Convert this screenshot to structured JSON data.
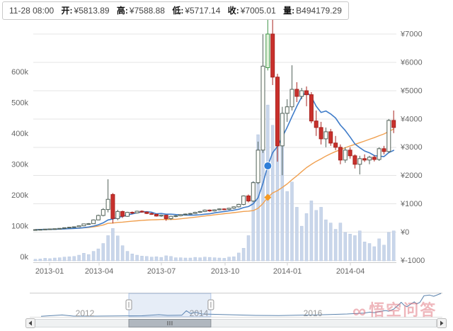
{
  "header": {
    "datetime": "11-28 08:00",
    "fields": [
      {
        "label": "开:",
        "value": "¥5813.89"
      },
      {
        "label": "高:",
        "value": "¥7588.88"
      },
      {
        "label": "低:",
        "value": "¥5717.14"
      },
      {
        "label": "收:",
        "value": "¥7005.01"
      },
      {
        "label": "量:",
        "value": "B494179.29"
      }
    ]
  },
  "colors": {
    "up_fill": "#fffefa",
    "up_stroke": "#52625a",
    "down_fill": "#c9302c",
    "down_stroke": "#a8241f",
    "hover_fill": "#e4f3dc",
    "hover_stroke": "#3f9448",
    "ma10": "#3f7cc9",
    "ma30": "#f0a050",
    "volume_fill": "#c9d6ea",
    "volume_stroke": "#b7c7e0",
    "grid": "#e4e4e4",
    "axis_line": "#cccccc",
    "axis_text": "#666666",
    "marker_blue": "#2f7ed8",
    "marker_orange": "#f59a23",
    "navigator_line": "#5b83ad",
    "mask_fill": "rgba(102,144,205,0.16)",
    "mask_stroke": "rgba(102,144,205,0.45)",
    "scroll_track": "#eff1f2",
    "scroll_thumb": "#b0b7bf"
  },
  "chart_data": {
    "type": "candlestick",
    "interval": "weekly",
    "title": "",
    "price_axis": {
      "unit": "¥",
      "labels": [
        "¥7000",
        "¥6000",
        "¥5000",
        "¥4000",
        "¥3000",
        "¥2000",
        "¥1000",
        "¥0",
        "¥-1000"
      ],
      "values": [
        7000,
        6000,
        5000,
        4000,
        3000,
        2000,
        1000,
        0,
        -1000
      ]
    },
    "volume_axis": {
      "unit": "k",
      "labels": [
        "600k",
        "500k",
        "400k",
        "300k",
        "200k",
        "100k",
        "0k"
      ],
      "values": [
        600,
        500,
        400,
        300,
        200,
        100,
        0
      ]
    },
    "time_axis": {
      "labels": [
        "2013-01",
        "2013-04",
        "2013-07",
        "2013-10",
        "2014-01",
        "2014-04"
      ]
    },
    "ma_periods": [
      10,
      30
    ],
    "hovered_index": 48,
    "hovered_values": {
      "open": 5813.89,
      "high": 7588.88,
      "low": 5717.14,
      "close": 7005.01,
      "volume_btc": 494179.29
    },
    "candles": [
      [
        "2012-12-27",
        85,
        92,
        80,
        88,
        5
      ],
      [
        "2013-01-03",
        88,
        98,
        84,
        95,
        6
      ],
      [
        "2013-01-10",
        95,
        110,
        90,
        105,
        8
      ],
      [
        "2013-01-17",
        105,
        118,
        100,
        112,
        7
      ],
      [
        "2013-01-24",
        112,
        125,
        108,
        120,
        9
      ],
      [
        "2013-01-31",
        120,
        138,
        115,
        132,
        10
      ],
      [
        "2013-02-07",
        132,
        160,
        128,
        155,
        12
      ],
      [
        "2013-02-14",
        155,
        180,
        148,
        172,
        13
      ],
      [
        "2013-02-21",
        172,
        195,
        165,
        188,
        14
      ],
      [
        "2013-02-28",
        188,
        230,
        180,
        222,
        18
      ],
      [
        "2013-03-07",
        222,
        300,
        210,
        290,
        24
      ],
      [
        "2013-03-14",
        290,
        320,
        260,
        298,
        20
      ],
      [
        "2013-03-21",
        298,
        450,
        290,
        432,
        30
      ],
      [
        "2013-03-28",
        432,
        620,
        420,
        590,
        38
      ],
      [
        "2013-04-04",
        590,
        850,
        560,
        800,
        55
      ],
      [
        "2013-04-11",
        800,
        1870,
        700,
        1160,
        80
      ],
      [
        "2013-04-18",
        1330,
        1380,
        310,
        480,
        103
      ],
      [
        "2013-04-25",
        480,
        790,
        420,
        730,
        79
      ],
      [
        "2013-05-02",
        730,
        760,
        500,
        560,
        48
      ],
      [
        "2013-05-09",
        560,
        720,
        540,
        700,
        30
      ],
      [
        "2013-05-16",
        700,
        730,
        640,
        680,
        22
      ],
      [
        "2013-05-23",
        680,
        760,
        660,
        740,
        18
      ],
      [
        "2013-05-30",
        740,
        770,
        690,
        710,
        15
      ],
      [
        "2013-06-06",
        710,
        730,
        640,
        660,
        14
      ],
      [
        "2013-06-13",
        660,
        690,
        610,
        630,
        12
      ],
      [
        "2013-06-20",
        630,
        650,
        550,
        570,
        13
      ],
      [
        "2013-06-27",
        570,
        620,
        540,
        600,
        11
      ],
      [
        "2013-07-04",
        600,
        610,
        400,
        480,
        16
      ],
      [
        "2013-07-11",
        480,
        580,
        430,
        560,
        14
      ],
      [
        "2013-07-18",
        560,
        600,
        530,
        580,
        10
      ],
      [
        "2013-07-25",
        580,
        640,
        560,
        620,
        10
      ],
      [
        "2013-08-01",
        620,
        660,
        600,
        640,
        9
      ],
      [
        "2013-08-08",
        640,
        680,
        620,
        660,
        9
      ],
      [
        "2013-08-15",
        660,
        720,
        640,
        700,
        11
      ],
      [
        "2013-08-22",
        700,
        750,
        680,
        730,
        10
      ],
      [
        "2013-08-29",
        730,
        800,
        710,
        780,
        12
      ],
      [
        "2013-09-05",
        780,
        800,
        720,
        750,
        11
      ],
      [
        "2013-09-12",
        750,
        810,
        730,
        790,
        10
      ],
      [
        "2013-09-19",
        790,
        840,
        770,
        820,
        9
      ],
      [
        "2013-09-26",
        820,
        840,
        780,
        805,
        8
      ],
      [
        "2013-10-03",
        805,
        860,
        780,
        845,
        12
      ],
      [
        "2013-10-10",
        845,
        910,
        820,
        895,
        13
      ],
      [
        "2013-10-17",
        895,
        1000,
        870,
        980,
        25
      ],
      [
        "2013-10-24",
        980,
        1300,
        950,
        1280,
        40
      ],
      [
        "2013-10-31",
        1280,
        1330,
        1050,
        1100,
        80
      ],
      [
        "2013-11-07",
        1100,
        1800,
        1060,
        1750,
        250
      ],
      [
        "2013-11-14",
        1750,
        3200,
        1700,
        2900,
        400
      ],
      [
        "2013-11-21",
        2900,
        7000,
        2800,
        5870,
        430
      ],
      [
        "2013-11-28",
        5813.89,
        7588.88,
        5717.14,
        7005.01,
        494.18
      ],
      [
        "2013-12-05",
        7005,
        7590,
        5200,
        5480,
        430
      ],
      [
        "2013-12-12",
        5480,
        5600,
        2490,
        3050,
        460
      ],
      [
        "2013-12-19",
        3050,
        4430,
        2010,
        4200,
        390
      ],
      [
        "2013-12-26",
        4200,
        4700,
        3900,
        4430,
        220
      ],
      [
        "2014-01-02",
        4430,
        5900,
        4300,
        5050,
        250
      ],
      [
        "2014-01-09",
        5050,
        5300,
        4600,
        4800,
        170
      ],
      [
        "2014-01-16",
        4800,
        5100,
        4700,
        5000,
        110
      ],
      [
        "2014-01-23",
        5000,
        5150,
        4450,
        4860,
        150
      ],
      [
        "2014-01-30",
        4860,
        4950,
        3850,
        3930,
        190
      ],
      [
        "2014-02-06",
        3930,
        4300,
        3400,
        3700,
        160
      ],
      [
        "2014-02-13",
        3700,
        3900,
        3100,
        3300,
        170
      ],
      [
        "2014-02-20",
        3300,
        3700,
        3000,
        3550,
        130
      ],
      [
        "2014-02-27",
        3550,
        3650,
        3050,
        3150,
        120
      ],
      [
        "2014-03-06",
        3150,
        3400,
        2900,
        3000,
        100
      ],
      [
        "2014-03-13",
        3000,
        3100,
        2400,
        2550,
        120
      ],
      [
        "2014-03-20",
        2550,
        3000,
        2450,
        2900,
        90
      ],
      [
        "2014-03-27",
        2900,
        3000,
        2600,
        2700,
        85
      ],
      [
        "2014-04-03",
        2700,
        2750,
        2250,
        2400,
        80
      ],
      [
        "2014-04-10",
        2400,
        2700,
        2040,
        2600,
        95
      ],
      [
        "2014-04-17",
        2600,
        2750,
        2480,
        2550,
        60
      ],
      [
        "2014-04-24",
        2550,
        2700,
        2400,
        2650,
        55
      ],
      [
        "2014-05-01",
        2650,
        2720,
        2500,
        2570,
        45
      ],
      [
        "2014-05-08",
        2570,
        3000,
        2520,
        2950,
        70
      ],
      [
        "2014-05-15",
        2950,
        3050,
        2750,
        2850,
        50
      ],
      [
        "2014-05-22",
        2850,
        4000,
        2800,
        3950,
        90
      ],
      [
        "2014-05-29",
        3950,
        4300,
        3500,
        3700,
        95
      ]
    ]
  },
  "navigator": {
    "year_labels": [
      "2012",
      "2014",
      "2016"
    ],
    "year_values": [
      2012,
      2014,
      2016
    ],
    "window": [
      2012.77,
      2014.21
    ],
    "series": [
      [
        2011.23,
        0.02
      ],
      [
        2011.6,
        0.08
      ],
      [
        2011.8,
        0.03
      ],
      [
        2012.2,
        0.03
      ],
      [
        2012.6,
        0.04
      ],
      [
        2013.0,
        0.045
      ],
      [
        2013.3,
        0.09
      ],
      [
        2013.45,
        0.06
      ],
      [
        2013.7,
        0.07
      ],
      [
        2013.78,
        0.26
      ],
      [
        2013.85,
        0.15
      ],
      [
        2013.95,
        0.19
      ],
      [
        2014.05,
        0.12
      ],
      [
        2014.4,
        0.1
      ],
      [
        2014.7,
        0.08
      ],
      [
        2015.0,
        0.06
      ],
      [
        2015.4,
        0.055
      ],
      [
        2015.7,
        0.07
      ],
      [
        2016.0,
        0.08
      ],
      [
        2016.3,
        0.1
      ],
      [
        2016.6,
        0.12
      ],
      [
        2016.9,
        0.16
      ],
      [
        2017.0,
        0.2
      ],
      [
        2017.08,
        0.18
      ],
      [
        2017.18,
        0.23
      ],
      [
        2017.28,
        0.27
      ],
      [
        2017.33,
        0.24
      ],
      [
        2017.42,
        0.33
      ],
      [
        2017.5,
        0.5
      ],
      [
        2017.55,
        0.62
      ],
      [
        2017.6,
        0.5
      ],
      [
        2017.65,
        0.43
      ],
      [
        2017.72,
        0.55
      ],
      [
        2017.78,
        0.64
      ],
      [
        2017.82,
        0.55
      ],
      [
        2017.88,
        0.62
      ],
      [
        2017.95,
        0.9
      ],
      [
        2018.05,
        0.93
      ],
      [
        2018.12,
        0.88
      ],
      [
        2018.25,
        1.0
      ]
    ]
  },
  "watermark": {
    "logo": "∞",
    "text": "悟空问答"
  }
}
